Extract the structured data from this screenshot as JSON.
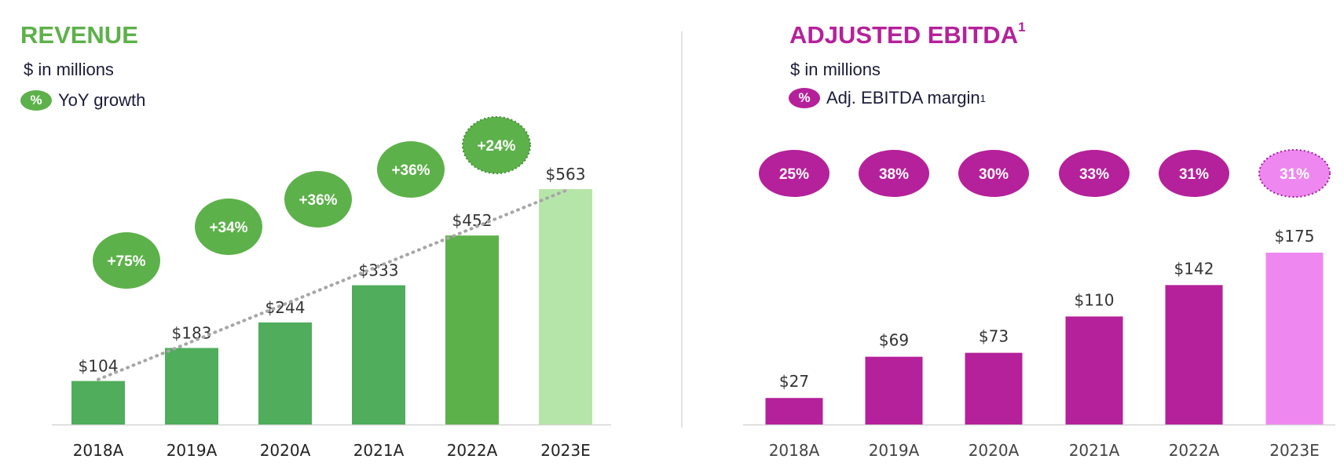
{
  "colors": {
    "green_dark": "#4fad5b",
    "green_mid": "#5db14a",
    "green_light": "#b6e5aa",
    "purple": "#b5219a",
    "purple_light": "#ee88f0",
    "axis": "#d4d4d4",
    "divider": "#d9d9d9",
    "trend": "#a6a6a6"
  },
  "left": {
    "title": "REVENUE",
    "unit": "$ in millions",
    "legend_badge": "%",
    "legend_label": "YoY growth"
  },
  "right": {
    "title": "ADJUSTED EBITDA",
    "title_sup": "1",
    "unit": "$ in millions",
    "legend_badge": "%",
    "legend_label": "Adj. EBITDA margin",
    "legend_sup": "1"
  },
  "chart_data": [
    {
      "type": "bar",
      "title": "REVENUE",
      "unit": "$ in millions",
      "categories": [
        "2018A",
        "2019A",
        "2020A",
        "2021A",
        "2022A",
        "2023E"
      ],
      "values": [
        104,
        183,
        244,
        333,
        452,
        563
      ],
      "value_labels": [
        "$104",
        "$183",
        "$244",
        "$333",
        "$452",
        "$563"
      ],
      "estimate_index": 5,
      "ylim": [
        0,
        563
      ],
      "trendline": "dotted",
      "annotations": {
        "name": "YoY growth",
        "for_categories": [
          "2019A",
          "2020A",
          "2021A",
          "2022A",
          "2023E"
        ],
        "labels": [
          "+75%",
          "+34%",
          "+36%",
          "+36%",
          "+24%"
        ]
      }
    },
    {
      "type": "bar",
      "title": "ADJUSTED EBITDA",
      "unit": "$ in millions",
      "categories": [
        "2018A",
        "2019A",
        "2020A",
        "2021A",
        "2022A",
        "2023E"
      ],
      "values": [
        27,
        69,
        73,
        110,
        142,
        175
      ],
      "value_labels": [
        "$27",
        "$69",
        "$73",
        "$110",
        "$142",
        "$175"
      ],
      "estimate_index": 5,
      "ylim": [
        0,
        175
      ],
      "annotations": {
        "name": "Adj. EBITDA margin",
        "labels": [
          "25%",
          "38%",
          "30%",
          "33%",
          "31%",
          "31%"
        ]
      }
    }
  ]
}
